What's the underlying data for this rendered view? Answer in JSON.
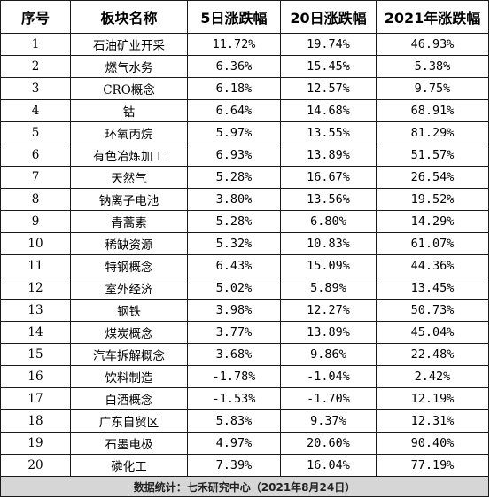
{
  "headers": [
    "序号",
    "板块名称",
    "5日涨跌幅",
    "20日涨跌幅",
    "2021年涨跌幅"
  ],
  "rows": [
    {
      "no": "1",
      "name": "石油矿业开采",
      "d5": "11.72%",
      "d20": "19.74%",
      "y2021": "46.93%"
    },
    {
      "no": "2",
      "name": "燃气水务",
      "d5": "6.36%",
      "d20": "15.45%",
      "y2021": "5.38%"
    },
    {
      "no": "3",
      "name": "CRO概念",
      "d5": "6.18%",
      "d20": "12.57%",
      "y2021": "9.75%"
    },
    {
      "no": "4",
      "name": "钴",
      "d5": "6.64%",
      "d20": "14.68%",
      "y2021": "68.91%"
    },
    {
      "no": "5",
      "name": "环氧丙烷",
      "d5": "5.97%",
      "d20": "13.55%",
      "y2021": "81.29%"
    },
    {
      "no": "6",
      "name": "有色冶炼加工",
      "d5": "6.93%",
      "d20": "13.89%",
      "y2021": "51.57%"
    },
    {
      "no": "7",
      "name": "天然气",
      "d5": "5.28%",
      "d20": "16.67%",
      "y2021": "26.54%"
    },
    {
      "no": "8",
      "name": "钠离子电池",
      "d5": "3.80%",
      "d20": "13.56%",
      "y2021": "19.52%"
    },
    {
      "no": "9",
      "name": "青蒿素",
      "d5": "5.28%",
      "d20": "6.80%",
      "y2021": "14.29%"
    },
    {
      "no": "10",
      "name": "稀缺资源",
      "d5": "5.32%",
      "d20": "10.83%",
      "y2021": "61.07%"
    },
    {
      "no": "11",
      "name": "特钢概念",
      "d5": "6.43%",
      "d20": "15.09%",
      "y2021": "44.36%"
    },
    {
      "no": "12",
      "name": "室外经济",
      "d5": "5.02%",
      "d20": "5.89%",
      "y2021": "13.45%"
    },
    {
      "no": "13",
      "name": "钢铁",
      "d5": "3.98%",
      "d20": "12.27%",
      "y2021": "50.73%"
    },
    {
      "no": "14",
      "name": "煤炭概念",
      "d5": "3.77%",
      "d20": "13.89%",
      "y2021": "45.04%"
    },
    {
      "no": "15",
      "name": "汽车拆解概念",
      "d5": "3.68%",
      "d20": "9.86%",
      "y2021": "22.48%"
    },
    {
      "no": "16",
      "name": "饮料制造",
      "d5": "-1.78%",
      "d20": "-1.04%",
      "y2021": "2.42%"
    },
    {
      "no": "17",
      "name": "白酒概念",
      "d5": "-1.53%",
      "d20": "-1.70%",
      "y2021": "12.19%"
    },
    {
      "no": "18",
      "name": "广东自贸区",
      "d5": "5.83%",
      "d20": "9.37%",
      "y2021": "12.31%"
    },
    {
      "no": "19",
      "name": "石墨电极",
      "d5": "4.97%",
      "d20": "20.60%",
      "y2021": "90.40%"
    },
    {
      "no": "20",
      "name": "磷化工",
      "d5": "7.39%",
      "d20": "16.04%",
      "y2021": "77.19%"
    }
  ],
  "footer": "数据统计：七禾研究中心（2021年8月24日）"
}
